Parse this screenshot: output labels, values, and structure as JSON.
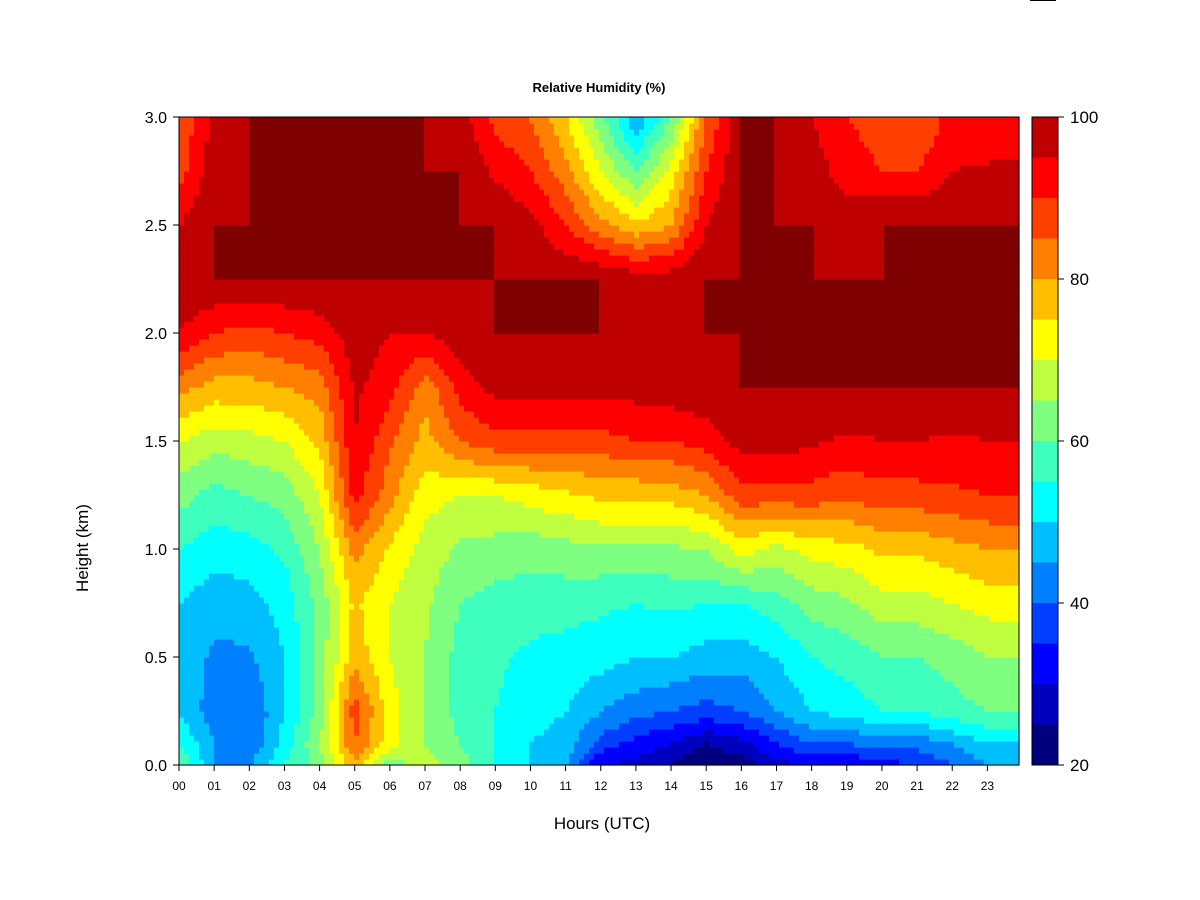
{
  "chart_data": {
    "type": "heatmap",
    "title": "Relative Humidity (%)",
    "xlabel": "Hours (UTC)",
    "ylabel": "Height (km)",
    "x_ticks": [
      "00",
      "01",
      "02",
      "03",
      "04",
      "05",
      "06",
      "07",
      "08",
      "09",
      "10",
      "11",
      "12",
      "13",
      "14",
      "15",
      "16",
      "17",
      "18",
      "19",
      "20",
      "21",
      "22",
      "23"
    ],
    "y_ticks": [
      "0.0",
      "0.5",
      "1.0",
      "1.5",
      "2.0",
      "2.5",
      "3.0"
    ],
    "xlim": [
      0,
      23.9
    ],
    "ylim": [
      0,
      3.0
    ],
    "colorbar": {
      "ticks": [
        "20",
        "40",
        "60",
        "80",
        "100"
      ],
      "levels": [
        20,
        25,
        30,
        35,
        40,
        45,
        50,
        55,
        60,
        65,
        70,
        75,
        80,
        85,
        90,
        95,
        100
      ],
      "colors": [
        "#00007f",
        "#0000bf",
        "#0000ff",
        "#003fff",
        "#007fff",
        "#00bfff",
        "#00ffff",
        "#3fffbf",
        "#7fff7f",
        "#bfff3f",
        "#ffff00",
        "#ffbf00",
        "#ff7f00",
        "#ff3f00",
        "#ff0000",
        "#bf0000",
        "#7f0000"
      ],
      "range": [
        20,
        100
      ]
    },
    "x": [
      0,
      1,
      2,
      3,
      4,
      5,
      6,
      7,
      8,
      9,
      10,
      11,
      12,
      13,
      14,
      15,
      16,
      17,
      18,
      19,
      20,
      21,
      22,
      23,
      23.9
    ],
    "y": [
      0.0,
      0.1,
      0.25,
      0.5,
      0.75,
      1.0,
      1.25,
      1.5,
      1.75,
      2.0,
      2.25,
      2.5,
      2.75,
      3.0
    ],
    "z": [
      [
        60,
        45,
        45,
        55,
        62,
        78,
        62,
        68,
        62,
        55,
        50,
        45,
        30,
        28,
        25,
        20,
        22,
        28,
        30,
        30,
        33,
        35,
        40,
        45,
        45
      ],
      [
        55,
        45,
        40,
        52,
        65,
        85,
        72,
        65,
        60,
        55,
        50,
        48,
        38,
        33,
        30,
        25,
        28,
        35,
        40,
        40,
        42,
        42,
        45,
        50,
        50
      ],
      [
        50,
        42,
        40,
        50,
        62,
        88,
        72,
        65,
        58,
        55,
        52,
        50,
        45,
        42,
        40,
        38,
        40,
        45,
        50,
        52,
        55,
        55,
        58,
        60,
        60
      ],
      [
        48,
        44,
        44,
        50,
        62,
        78,
        70,
        65,
        58,
        56,
        54,
        53,
        52,
        50,
        50,
        48,
        47,
        50,
        55,
        57,
        60,
        60,
        62,
        65,
        65
      ],
      [
        50,
        47,
        48,
        52,
        62,
        76,
        70,
        66,
        60,
        58,
        57,
        57,
        56,
        55,
        56,
        55,
        55,
        58,
        62,
        64,
        68,
        68,
        70,
        72,
        72
      ],
      [
        55,
        52,
        53,
        56,
        65,
        82,
        74,
        68,
        64,
        63,
        62,
        63,
        64,
        64,
        64,
        65,
        72,
        68,
        72,
        73,
        76,
        76,
        78,
        80,
        80
      ],
      [
        62,
        58,
        60,
        62,
        70,
        92,
        82,
        72,
        70,
        70,
        72,
        74,
        76,
        76,
        77,
        80,
        88,
        88,
        88,
        86,
        88,
        88,
        89,
        90,
        90
      ],
      [
        70,
        67,
        68,
        70,
        76,
        95,
        86,
        78,
        85,
        88,
        88,
        88,
        88,
        90,
        90,
        92,
        97,
        97,
        96,
        94,
        95,
        95,
        94,
        95,
        95
      ],
      [
        82,
        78,
        78,
        80,
        82,
        96,
        92,
        82,
        92,
        97,
        97,
        97,
        97,
        97,
        98,
        99,
        100,
        100,
        100,
        100,
        100,
        100,
        100,
        100,
        100
      ],
      [
        95,
        90,
        88,
        90,
        92,
        98,
        95,
        95,
        98,
        100,
        100,
        100,
        100,
        100,
        100,
        100,
        100,
        100,
        100,
        100,
        100,
        100,
        100,
        100,
        100
      ],
      [
        100,
        100,
        100,
        100,
        100,
        100,
        100,
        100,
        100,
        100,
        100,
        100,
        100,
        98,
        98,
        100,
        100,
        100,
        100,
        100,
        100,
        100,
        100,
        100,
        100
      ],
      [
        95,
        100,
        100,
        100,
        100,
        100,
        100,
        100,
        100,
        100,
        97,
        90,
        82,
        76,
        80,
        95,
        100,
        100,
        100,
        98,
        100,
        100,
        100,
        100,
        100
      ],
      [
        88,
        98,
        100,
        100,
        100,
        100,
        100,
        100,
        100,
        94,
        90,
        82,
        70,
        60,
        72,
        90,
        100,
        100,
        98,
        92,
        90,
        90,
        95,
        96,
        96
      ],
      [
        85,
        97,
        100,
        100,
        100,
        100,
        100,
        100,
        98,
        88,
        85,
        75,
        62,
        45,
        60,
        85,
        100,
        100,
        95,
        90,
        88,
        85,
        92,
        90,
        90
      ]
    ]
  }
}
